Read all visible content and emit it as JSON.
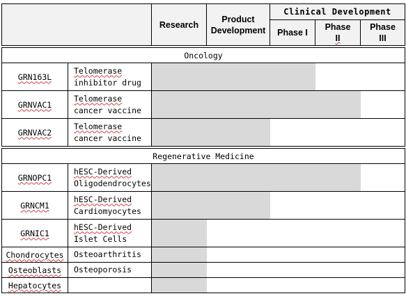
{
  "header": {
    "research": "Research",
    "product_development": [
      "Product",
      "Development"
    ],
    "clinical_development": "Clinical Development",
    "phase1": "Phase I",
    "phase2": [
      "Phase",
      "II"
    ],
    "phase3": [
      "Phase",
      "III"
    ]
  },
  "sections": [
    {
      "title": "Oncology",
      "rows": [
        {
          "code": "GRN163L",
          "indication": [
            "Telomerase",
            "inhibitor drug"
          ],
          "underline_first": true,
          "stage_reached": 3
        },
        {
          "code": "GRNVAC1",
          "indication": [
            "Telomerase",
            "cancer vaccine"
          ],
          "underline_first": true,
          "stage_reached": 4
        },
        {
          "code": "GRNVAC2",
          "indication": [
            "Telomerase",
            "cancer vaccine"
          ],
          "underline_first": true,
          "stage_reached": 2
        }
      ]
    },
    {
      "title": "Regenerative Medicine",
      "rows": [
        {
          "code": "GRNOPC1",
          "indication": [
            "hESC-Derived",
            "Oligodendrocytes"
          ],
          "underline_first": true,
          "stage_reached": 4
        },
        {
          "code": "GRNCM1",
          "indication": [
            "hESC-Derived",
            "Cardiomyocytes"
          ],
          "underline_first": true,
          "stage_reached": 2
        },
        {
          "code": "GRNIC1",
          "indication": [
            "hESC-Derived",
            "Islet Cells"
          ],
          "underline_first": true,
          "stage_reached": 1
        },
        {
          "code": "Chondrocytes",
          "indication": [
            "Osteoarthritis"
          ],
          "underline_first": false,
          "stage_reached": 1
        },
        {
          "code": "Osteoblasts",
          "indication": [
            "Osteoporosis"
          ],
          "underline_first": false,
          "stage_reached": 1
        },
        {
          "code": "Hepatocytes",
          "indication": [
            ""
          ],
          "underline_first": false,
          "stage_reached": 1
        }
      ]
    }
  ],
  "colors": {
    "header_bg": "#f2f2f2",
    "bar": "#d9d9d9",
    "spell_underline": "#d04040"
  }
}
